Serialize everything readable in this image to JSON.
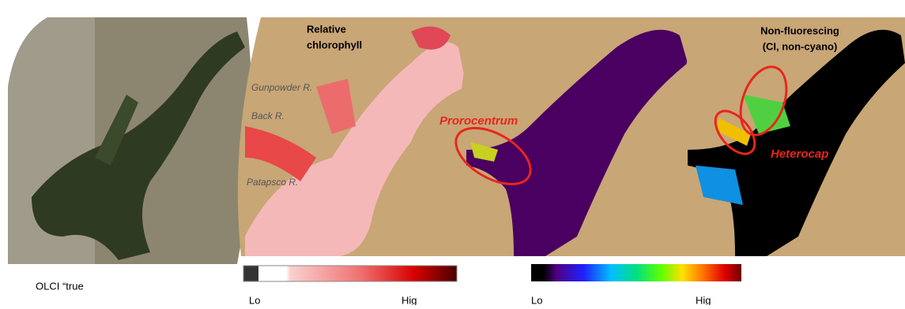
{
  "panels": [
    {
      "caption": "OLCI “true"
    },
    {
      "title": [
        "Relative",
        "chlorophyll"
      ],
      "labels": [
        "Gunpowder R.",
        "Back R.",
        "Patapsco R."
      ]
    },
    {
      "annotation": "Prorocentrum"
    },
    {
      "title": [
        "Non-fluorescing",
        "(CI, non-cyano)"
      ],
      "annotation": "Heterocap"
    }
  ],
  "colorbars": [
    {
      "low": "Lo",
      "high": "Hig"
    },
    {
      "low": "Lo",
      "high": "Hig"
    }
  ]
}
